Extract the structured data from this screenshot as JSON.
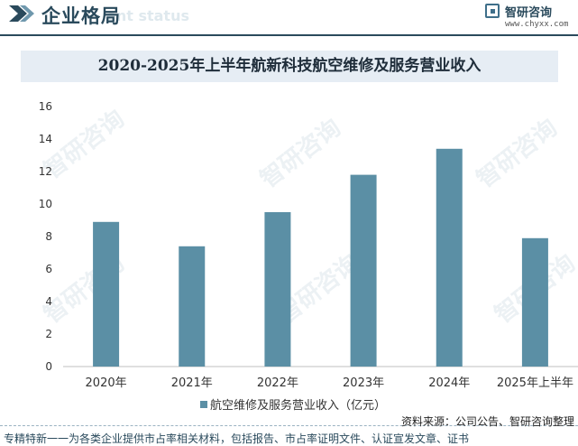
{
  "header": {
    "title": "企业格局",
    "subtitle": "ent status",
    "logo_name": "智研咨询",
    "logo_url": "www.chyxx.com"
  },
  "watermark": "智研咨询",
  "chart_data": {
    "type": "bar",
    "title": "2020-2025年上半年航新科技航空维修及服务营业收入",
    "categories": [
      "2020年",
      "2021年",
      "2022年",
      "2023年",
      "2024年",
      "2025年上半年"
    ],
    "series": [
      {
        "name": "航空维修及服务营业收入（亿元）",
        "values": [
          8.9,
          7.4,
          9.5,
          11.8,
          13.4,
          7.9
        ],
        "color": "#5b8fa5"
      }
    ],
    "ylim": [
      0,
      16
    ],
    "yticks": [
      0,
      2,
      4,
      6,
      8,
      10,
      12,
      14,
      16
    ],
    "xlabel": "",
    "ylabel": "",
    "grid": false,
    "legend_position": "bottom"
  },
  "footer": {
    "source": "资料来源：公司公告、智研咨询整理",
    "text": "专精特新一一为各类企业提供市占率相关材料，包括报告、市占率证明文件、认证宣发文章、证书"
  }
}
